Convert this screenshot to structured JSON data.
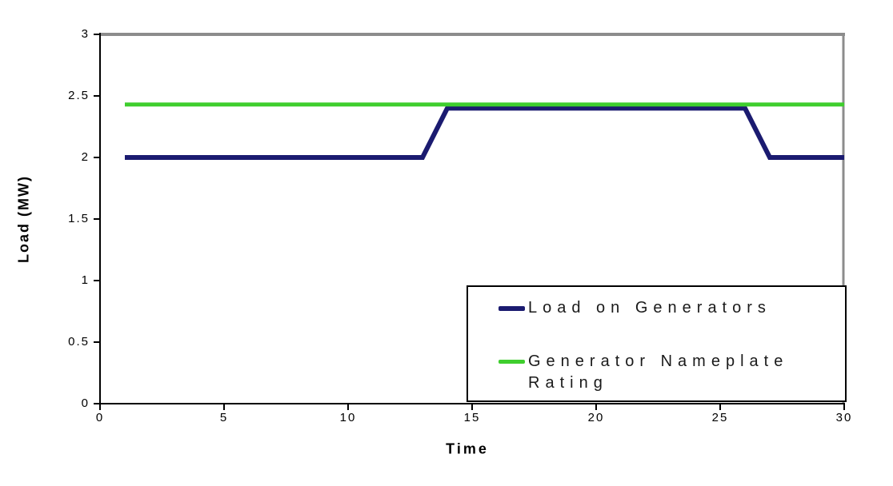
{
  "chart_data": {
    "type": "line",
    "title": "",
    "xlabel": "Time",
    "ylabel": "Load (MW)",
    "xlim": [
      0,
      30
    ],
    "ylim": [
      0,
      3
    ],
    "xticks": [
      0,
      5,
      10,
      15,
      20,
      25,
      30
    ],
    "xtick_labels": [
      "0",
      "5",
      "10",
      "15",
      "20",
      "25",
      "30"
    ],
    "yticks": [
      0,
      0.5,
      1,
      1.5,
      2,
      2.5,
      3
    ],
    "ytick_labels": [
      "0",
      "0.5",
      "1",
      "1.5",
      "2",
      "2.5",
      "3"
    ],
    "grid": false,
    "legend_position": "bottom-right",
    "series": [
      {
        "name": "Load on Generators",
        "color": "#1b1b70",
        "stroke_width": 6,
        "points": [
          [
            1,
            2
          ],
          [
            13,
            2
          ],
          [
            14,
            2.4
          ],
          [
            26,
            2.4
          ],
          [
            27,
            2
          ],
          [
            30,
            2
          ]
        ]
      },
      {
        "name": "Generator Nameplate Rating",
        "color": "#3fce2e",
        "stroke_width": 5,
        "points": [
          [
            1,
            2.43
          ],
          [
            30,
            2.43
          ]
        ]
      }
    ],
    "colors": {
      "frame": "#8c8c8c",
      "axis": "#000000",
      "background": "#ffffff"
    }
  }
}
